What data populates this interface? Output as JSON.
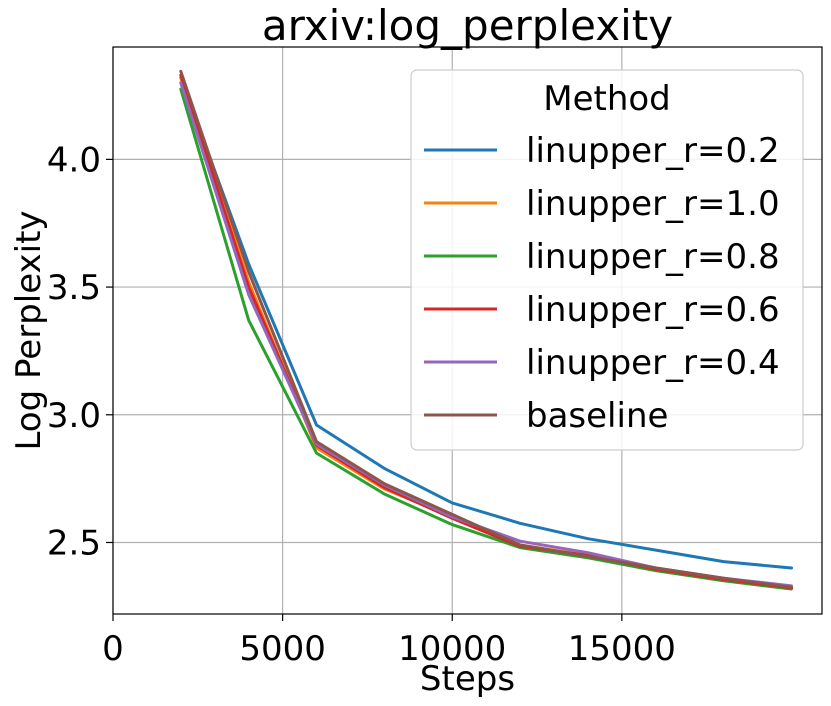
{
  "chart_data": {
    "type": "line",
    "title": "arxiv:log_perplexity",
    "xlabel": "Steps",
    "ylabel": "Log Perplexity",
    "xlim": [
      0,
      20900
    ],
    "ylim": [
      2.22,
      4.44
    ],
    "xticks": [
      0,
      5000,
      10000,
      15000
    ],
    "xtick_labels": [
      "0",
      "5000",
      "10000",
      "15000"
    ],
    "yticks": [
      2.5,
      3.0,
      3.5,
      4.0
    ],
    "ytick_labels": [
      "2.5",
      "3.0",
      "3.5",
      "4.0"
    ],
    "grid": true,
    "legend": {
      "title": "Method",
      "position": "top-right"
    },
    "x": [
      2000,
      4000,
      6000,
      8000,
      10000,
      12000,
      14000,
      16000,
      18000,
      20000
    ],
    "series": [
      {
        "name": "linupper_r=0.2",
        "color": "#1f77b4",
        "values": [
          4.32,
          3.59,
          2.96,
          2.79,
          2.655,
          2.575,
          2.515,
          2.47,
          2.425,
          2.4
        ]
      },
      {
        "name": "linupper_r=1.0",
        "color": "#ff7f0e",
        "values": [
          4.32,
          3.52,
          2.87,
          2.71,
          2.6,
          2.49,
          2.45,
          2.4,
          2.36,
          2.325
        ]
      },
      {
        "name": "linupper_r=0.8",
        "color": "#2ca02c",
        "values": [
          4.275,
          3.37,
          2.85,
          2.69,
          2.57,
          2.48,
          2.44,
          2.39,
          2.35,
          2.318
        ]
      },
      {
        "name": "linupper_r=0.6",
        "color": "#d62728",
        "values": [
          4.33,
          3.5,
          2.88,
          2.715,
          2.595,
          2.485,
          2.45,
          2.395,
          2.355,
          2.322
        ]
      },
      {
        "name": "linupper_r=0.4",
        "color": "#9467bd",
        "values": [
          4.3,
          3.47,
          2.885,
          2.725,
          2.6,
          2.505,
          2.46,
          2.4,
          2.36,
          2.33
        ]
      },
      {
        "name": "baseline",
        "color": "#8c564b",
        "values": [
          4.345,
          3.56,
          2.895,
          2.73,
          2.61,
          2.49,
          2.445,
          2.4,
          2.36,
          2.325
        ]
      }
    ]
  }
}
